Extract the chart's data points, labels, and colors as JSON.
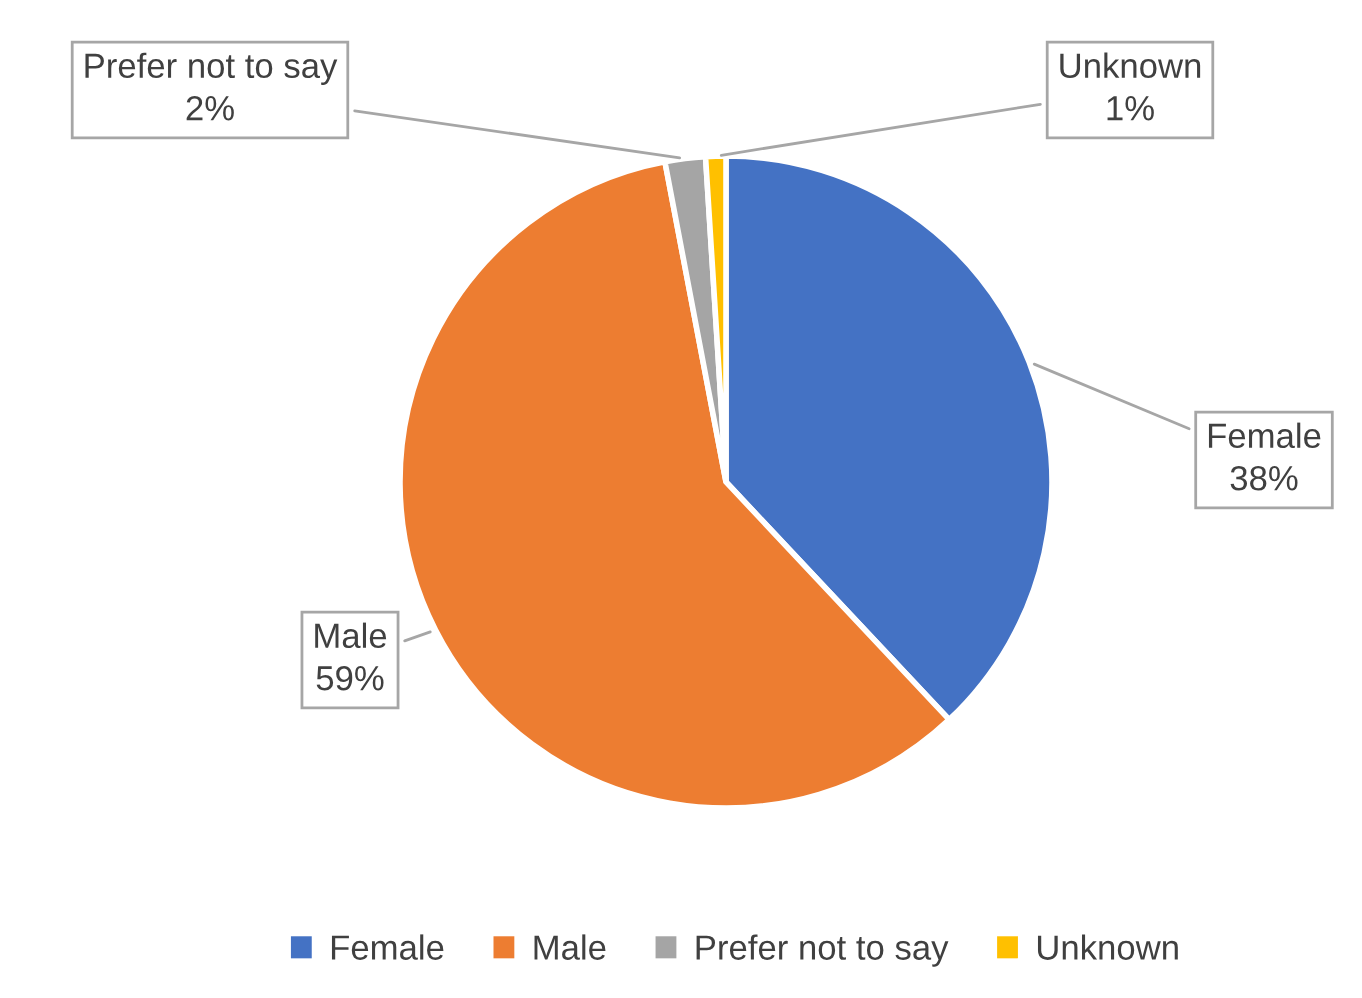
{
  "chart_data": {
    "type": "pie",
    "categories": [
      "Female",
      "Male",
      "Prefer not to say",
      "Unknown"
    ],
    "values": [
      38,
      59,
      2,
      1
    ],
    "value_labels": [
      "38%",
      "59%",
      "2%",
      "1%"
    ],
    "colors": [
      "#4472c4",
      "#ed7d31",
      "#a5a5a5",
      "#ffc000"
    ],
    "legend": "bottom"
  }
}
